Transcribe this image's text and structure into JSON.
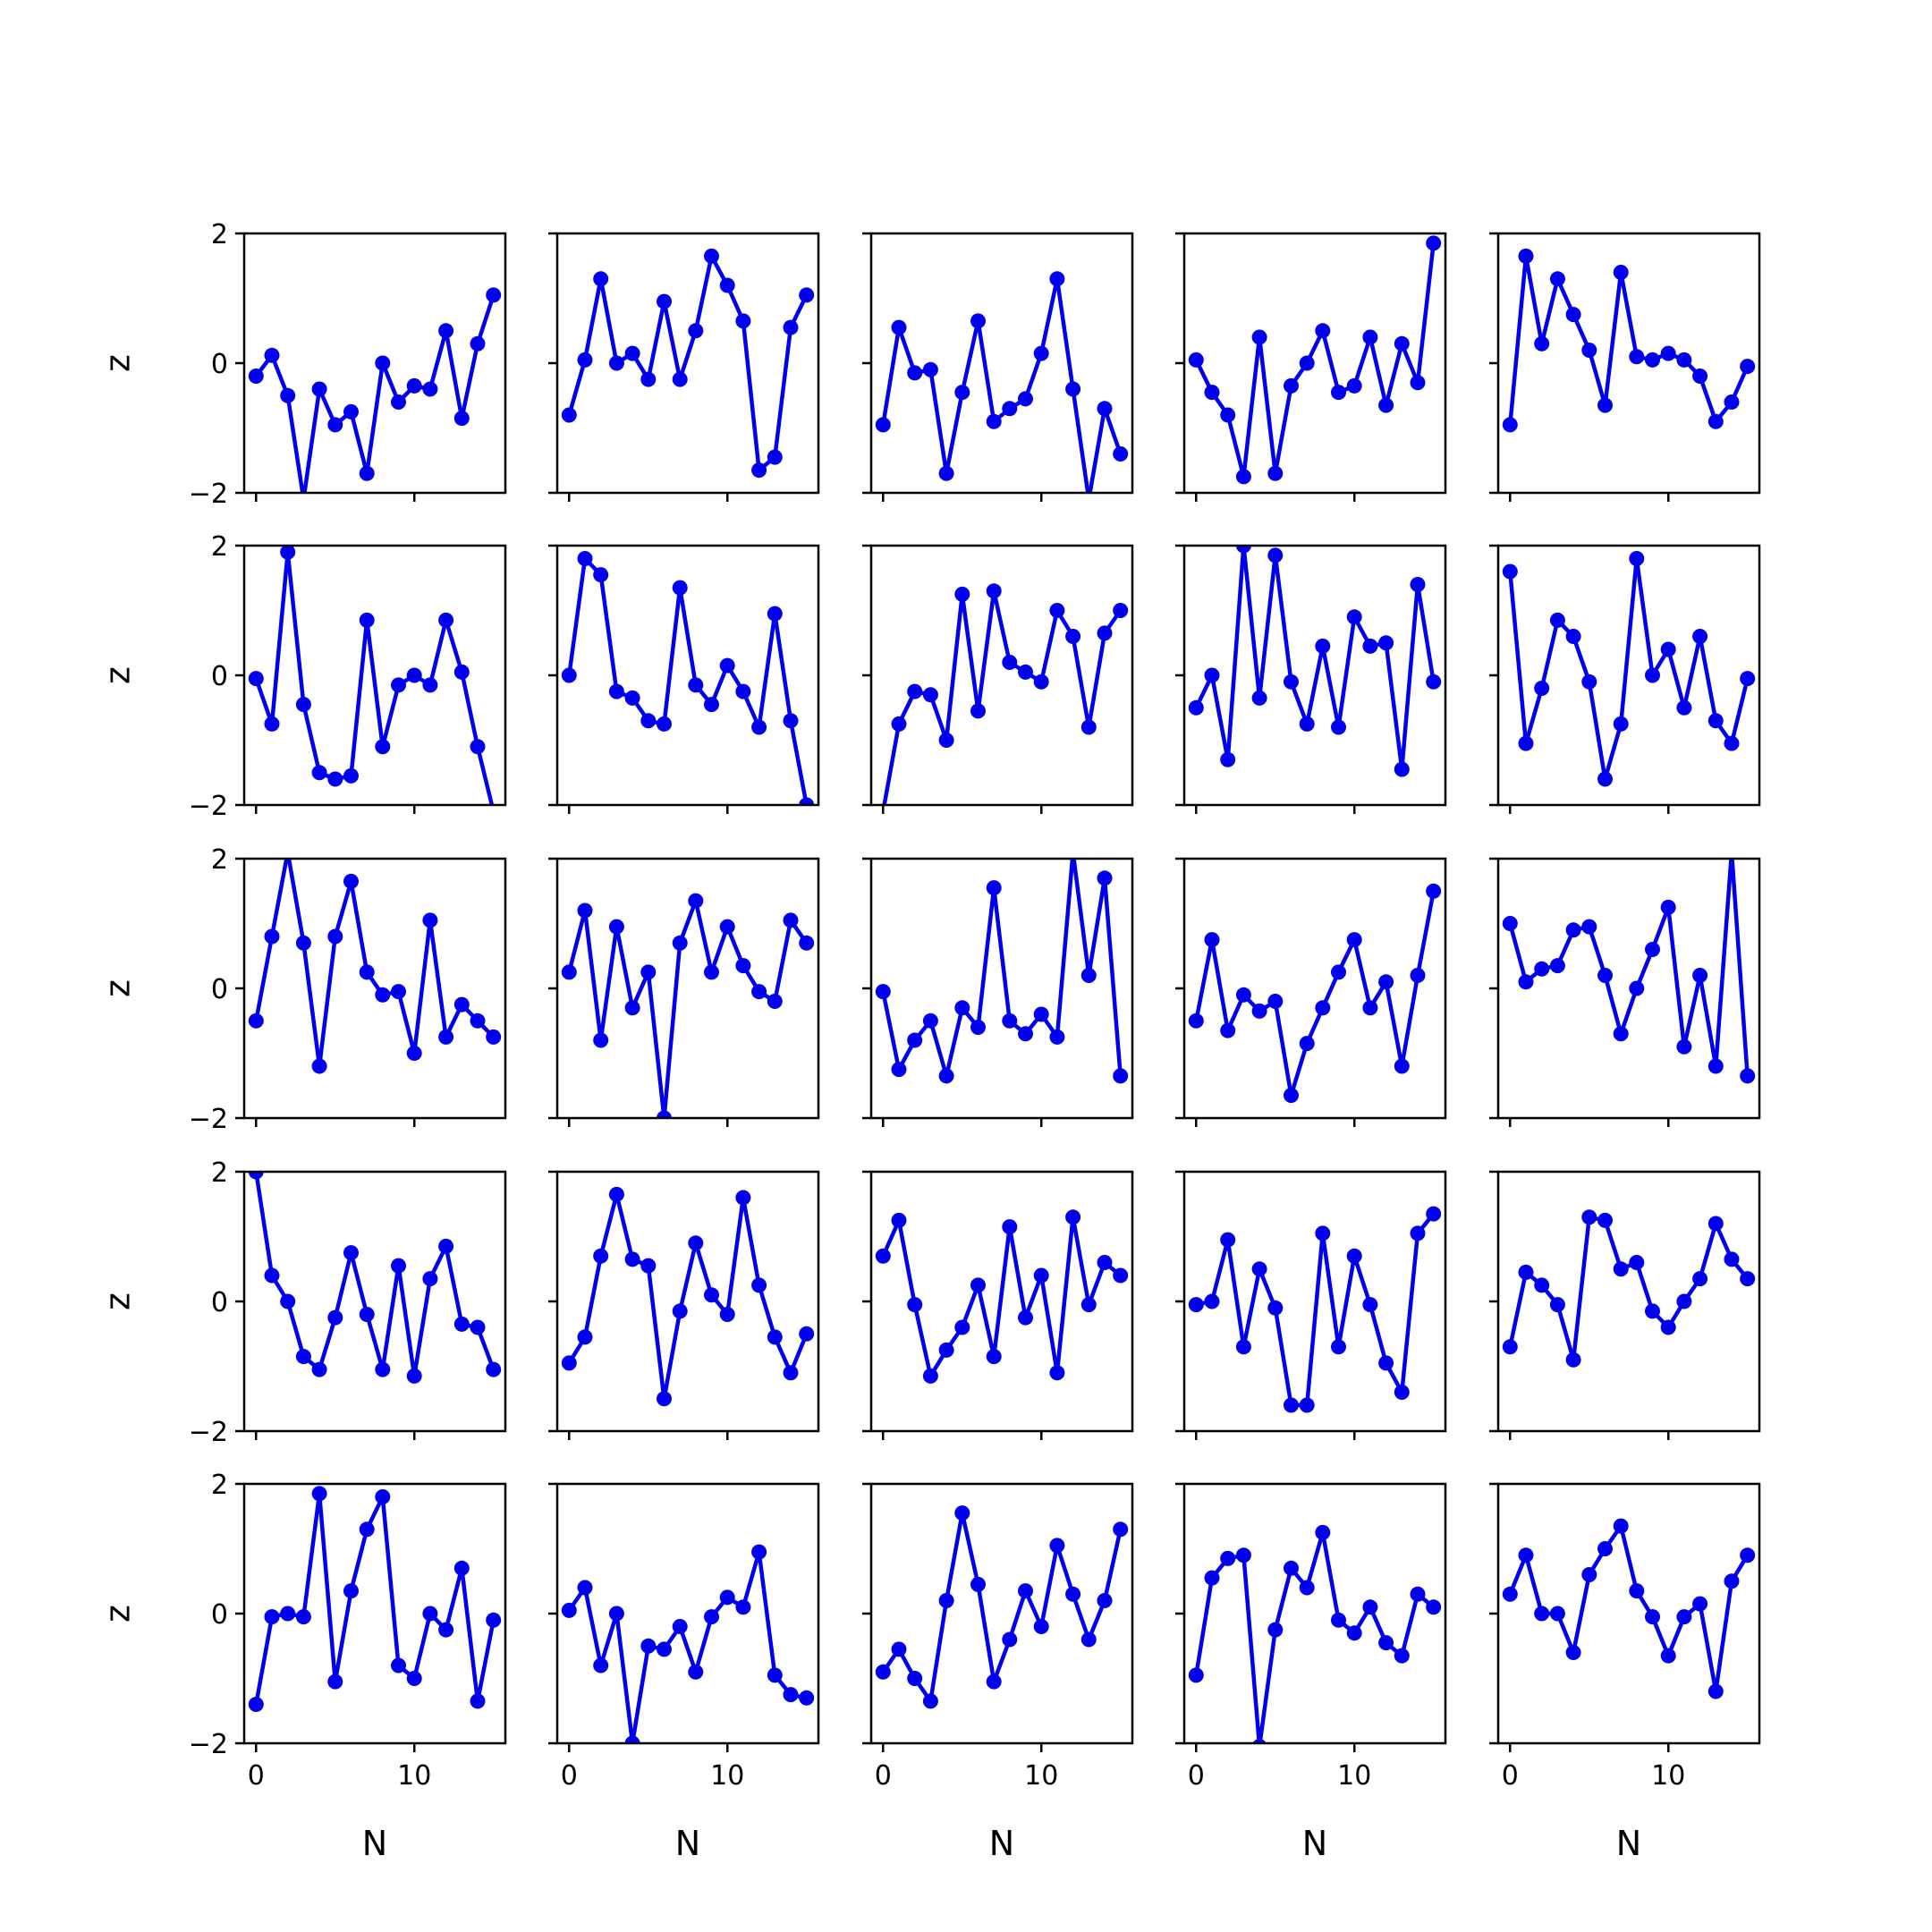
{
  "figure": {
    "line_color": "#0000ee"
  },
  "axes": {
    "ylabel": "z",
    "xlabel": "N",
    "xlim": [
      -0.75,
      15.75
    ],
    "ylim": [
      -2,
      2
    ],
    "xticks": [
      0,
      10
    ],
    "yticks": [
      -2,
      0,
      2
    ],
    "xtick_labels": [
      "0",
      "10"
    ],
    "ytick_labels": [
      "−2",
      "0",
      "2"
    ]
  },
  "chart_data": [
    {
      "type": "line",
      "panel": "r1c1",
      "x": [
        0,
        1,
        2,
        3,
        4,
        5,
        6,
        7,
        8,
        9,
        10,
        11,
        12,
        13,
        14,
        15
      ],
      "values": [
        -0.2,
        0.12,
        -0.5,
        -2.1,
        -0.4,
        -0.95,
        -0.75,
        -1.7,
        0.0,
        -0.6,
        -0.35,
        -0.4,
        0.5,
        -0.85,
        0.3,
        1.05
      ]
    },
    {
      "type": "line",
      "panel": "r1c2",
      "x": [
        0,
        1,
        2,
        3,
        4,
        5,
        6,
        7,
        8,
        9,
        10,
        11,
        12,
        13,
        14,
        15
      ],
      "values": [
        -0.8,
        0.05,
        1.3,
        0.0,
        0.15,
        -0.25,
        0.95,
        -0.25,
        0.5,
        1.65,
        1.2,
        0.65,
        -1.65,
        -1.45,
        0.55,
        1.05
      ]
    },
    {
      "type": "line",
      "panel": "r1c3",
      "x": [
        0,
        1,
        2,
        3,
        4,
        5,
        6,
        7,
        8,
        9,
        10,
        11,
        12,
        13,
        14,
        15
      ],
      "values": [
        -0.95,
        0.55,
        -0.15,
        -0.1,
        -1.7,
        -0.45,
        0.65,
        -0.9,
        -0.7,
        -0.55,
        0.15,
        1.3,
        -0.4,
        -2.1,
        -0.7,
        -1.4
      ]
    },
    {
      "type": "line",
      "panel": "r1c4",
      "x": [
        0,
        1,
        2,
        3,
        4,
        5,
        6,
        7,
        8,
        9,
        10,
        11,
        12,
        13,
        14,
        15
      ],
      "values": [
        0.05,
        -0.45,
        -0.8,
        -1.75,
        0.4,
        -1.7,
        -0.35,
        0.0,
        0.5,
        -0.45,
        -0.35,
        0.4,
        -0.65,
        0.3,
        -0.3,
        1.85
      ]
    },
    {
      "type": "line",
      "panel": "r1c5",
      "x": [
        0,
        1,
        2,
        3,
        4,
        5,
        6,
        7,
        8,
        9,
        10,
        11,
        12,
        13,
        14,
        15
      ],
      "values": [
        -0.95,
        1.65,
        0.3,
        1.3,
        0.75,
        0.2,
        -0.65,
        1.4,
        0.1,
        0.05,
        0.15,
        0.05,
        -0.2,
        -0.9,
        -0.6,
        -0.05
      ]
    },
    {
      "type": "line",
      "panel": "r2c1",
      "x": [
        0,
        1,
        2,
        3,
        4,
        5,
        6,
        7,
        8,
        9,
        10,
        11,
        12,
        13,
        14,
        15
      ],
      "values": [
        -0.05,
        -0.75,
        1.9,
        -0.45,
        -1.5,
        -1.6,
        -1.55,
        0.85,
        -1.1,
        -0.15,
        0.0,
        -0.15,
        0.85,
        0.05,
        -1.1,
        -2.1
      ]
    },
    {
      "type": "line",
      "panel": "r2c2",
      "x": [
        0,
        1,
        2,
        3,
        4,
        5,
        6,
        7,
        8,
        9,
        10,
        11,
        12,
        13,
        14,
        15
      ],
      "values": [
        0.0,
        1.8,
        1.55,
        -0.25,
        -0.35,
        -0.7,
        -0.75,
        1.35,
        -0.15,
        -0.45,
        0.15,
        -0.25,
        -0.8,
        0.95,
        -0.7,
        -2.0
      ]
    },
    {
      "type": "line",
      "panel": "r2c3",
      "x": [
        0,
        1,
        2,
        3,
        4,
        5,
        6,
        7,
        8,
        9,
        10,
        11,
        12,
        13,
        14,
        15
      ],
      "values": [
        -2.1,
        -0.75,
        -0.25,
        -0.3,
        -1.0,
        1.25,
        -0.55,
        1.3,
        0.2,
        0.05,
        -0.1,
        1.0,
        0.6,
        -0.8,
        0.65,
        1.0
      ]
    },
    {
      "type": "line",
      "panel": "r2c4",
      "x": [
        0,
        1,
        2,
        3,
        4,
        5,
        6,
        7,
        8,
        9,
        10,
        11,
        12,
        13,
        14,
        15
      ],
      "values": [
        -0.5,
        0.0,
        -1.3,
        2.0,
        -0.35,
        1.85,
        -0.1,
        -0.75,
        0.45,
        -0.8,
        0.9,
        0.45,
        0.5,
        -1.45,
        1.4,
        -0.1
      ]
    },
    {
      "type": "line",
      "panel": "r2c5",
      "x": [
        0,
        1,
        2,
        3,
        4,
        5,
        6,
        7,
        8,
        9,
        10,
        11,
        12,
        13,
        14,
        15
      ],
      "values": [
        1.6,
        -1.05,
        -0.2,
        0.85,
        0.6,
        -0.1,
        -1.6,
        -0.75,
        1.8,
        0.0,
        0.4,
        -0.5,
        0.6,
        -0.7,
        -1.05,
        -0.05
      ]
    },
    {
      "type": "line",
      "panel": "r3c1",
      "x": [
        0,
        1,
        2,
        3,
        4,
        5,
        6,
        7,
        8,
        9,
        10,
        11,
        12,
        13,
        14,
        15
      ],
      "values": [
        -0.5,
        0.8,
        2.1,
        0.7,
        -1.2,
        0.8,
        1.65,
        0.25,
        -0.1,
        -0.05,
        -1.0,
        1.05,
        -0.75,
        -0.25,
        -0.5,
        -0.75
      ]
    },
    {
      "type": "line",
      "panel": "r3c2",
      "x": [
        0,
        1,
        2,
        3,
        4,
        5,
        6,
        7,
        8,
        9,
        10,
        11,
        12,
        13,
        14,
        15
      ],
      "values": [
        0.25,
        1.2,
        -0.8,
        0.95,
        -0.3,
        0.25,
        -2.0,
        0.7,
        1.35,
        0.25,
        0.95,
        0.35,
        -0.05,
        -0.2,
        1.05,
        0.7
      ]
    },
    {
      "type": "line",
      "panel": "r3c3",
      "x": [
        0,
        1,
        2,
        3,
        4,
        5,
        6,
        7,
        8,
        9,
        10,
        11,
        12,
        13,
        14,
        15
      ],
      "values": [
        -0.05,
        -1.25,
        -0.8,
        -0.5,
        -1.35,
        -0.3,
        -0.6,
        1.55,
        -0.5,
        -0.7,
        -0.4,
        -0.75,
        2.1,
        0.2,
        1.7,
        -1.35
      ]
    },
    {
      "type": "line",
      "panel": "r3c4",
      "x": [
        0,
        1,
        2,
        3,
        4,
        5,
        6,
        7,
        8,
        9,
        10,
        11,
        12,
        13,
        14,
        15
      ],
      "values": [
        -0.5,
        0.75,
        -0.65,
        -0.1,
        -0.35,
        -0.2,
        -1.65,
        -0.85,
        -0.3,
        0.25,
        0.75,
        -0.3,
        0.1,
        -1.2,
        0.2,
        1.5
      ]
    },
    {
      "type": "line",
      "panel": "r3c5",
      "x": [
        0,
        1,
        2,
        3,
        4,
        5,
        6,
        7,
        8,
        9,
        10,
        11,
        12,
        13,
        14,
        15
      ],
      "values": [
        1.0,
        0.1,
        0.3,
        0.35,
        0.9,
        0.95,
        0.2,
        -0.7,
        0.0,
        0.6,
        1.25,
        -0.9,
        0.2,
        -1.2,
        2.1,
        -1.35
      ]
    },
    {
      "type": "line",
      "panel": "r4c1",
      "x": [
        0,
        1,
        2,
        3,
        4,
        5,
        6,
        7,
        8,
        9,
        10,
        11,
        12,
        13,
        14,
        15
      ],
      "values": [
        2.0,
        0.4,
        0.0,
        -0.85,
        -1.05,
        -0.25,
        0.75,
        -0.2,
        -1.05,
        0.55,
        -1.15,
        0.35,
        0.85,
        -0.35,
        -0.4,
        -1.05
      ]
    },
    {
      "type": "line",
      "panel": "r4c2",
      "x": [
        0,
        1,
        2,
        3,
        4,
        5,
        6,
        7,
        8,
        9,
        10,
        11,
        12,
        13,
        14,
        15
      ],
      "values": [
        -0.95,
        -0.55,
        0.7,
        1.65,
        0.65,
        0.55,
        -1.5,
        -0.15,
        0.9,
        0.1,
        -0.2,
        1.6,
        0.25,
        -0.55,
        -1.1,
        -0.5
      ]
    },
    {
      "type": "line",
      "panel": "r4c3",
      "x": [
        0,
        1,
        2,
        3,
        4,
        5,
        6,
        7,
        8,
        9,
        10,
        11,
        12,
        13,
        14,
        15
      ],
      "values": [
        0.7,
        1.25,
        -0.05,
        -1.15,
        -0.75,
        -0.4,
        0.25,
        -0.85,
        1.15,
        -0.25,
        0.4,
        -1.1,
        1.3,
        -0.05,
        0.6,
        0.4
      ]
    },
    {
      "type": "line",
      "panel": "r4c4",
      "x": [
        0,
        1,
        2,
        3,
        4,
        5,
        6,
        7,
        8,
        9,
        10,
        11,
        12,
        13,
        14,
        15
      ],
      "values": [
        -0.05,
        0.0,
        0.95,
        -0.7,
        0.5,
        -0.1,
        -1.6,
        -1.6,
        1.05,
        -0.7,
        0.7,
        -0.05,
        -0.95,
        -1.4,
        1.05,
        1.35
      ]
    },
    {
      "type": "line",
      "panel": "r4c5",
      "x": [
        0,
        1,
        2,
        3,
        4,
        5,
        6,
        7,
        8,
        9,
        10,
        11,
        12,
        13,
        14,
        15
      ],
      "values": [
        -0.7,
        0.45,
        0.25,
        -0.05,
        -0.9,
        1.3,
        1.25,
        0.5,
        0.6,
        -0.15,
        -0.4,
        0.0,
        0.35,
        1.2,
        0.65,
        0.35
      ]
    },
    {
      "type": "line",
      "panel": "r5c1",
      "x": [
        0,
        1,
        2,
        3,
        4,
        5,
        6,
        7,
        8,
        9,
        10,
        11,
        12,
        13,
        14,
        15
      ],
      "values": [
        -1.4,
        -0.05,
        0.0,
        -0.05,
        1.85,
        -1.05,
        0.35,
        1.3,
        1.8,
        -0.8,
        -1.0,
        0.0,
        -0.25,
        0.7,
        -1.35,
        -0.1
      ]
    },
    {
      "type": "line",
      "panel": "r5c2",
      "x": [
        0,
        1,
        2,
        3,
        4,
        5,
        6,
        7,
        8,
        9,
        10,
        11,
        12,
        13,
        14,
        15
      ],
      "values": [
        0.05,
        0.4,
        -0.8,
        0.0,
        -2.0,
        -0.5,
        -0.55,
        -0.2,
        -0.9,
        -0.05,
        0.25,
        0.1,
        0.95,
        -0.95,
        -1.25,
        -1.3
      ]
    },
    {
      "type": "line",
      "panel": "r5c3",
      "x": [
        0,
        1,
        2,
        3,
        4,
        5,
        6,
        7,
        8,
        9,
        10,
        11,
        12,
        13,
        14,
        15
      ],
      "values": [
        -0.9,
        -0.55,
        -1.0,
        -1.35,
        0.2,
        1.55,
        0.45,
        -1.05,
        -0.4,
        0.35,
        -0.2,
        1.05,
        0.3,
        -0.4,
        0.2,
        1.3
      ]
    },
    {
      "type": "line",
      "panel": "r5c4",
      "x": [
        0,
        1,
        2,
        3,
        4,
        5,
        6,
        7,
        8,
        9,
        10,
        11,
        12,
        13,
        14,
        15
      ],
      "values": [
        -0.95,
        0.55,
        0.85,
        0.9,
        -2.05,
        -0.25,
        0.7,
        0.4,
        1.25,
        -0.1,
        -0.3,
        0.1,
        -0.45,
        -0.65,
        0.3,
        0.1
      ]
    },
    {
      "type": "line",
      "panel": "r5c5",
      "x": [
        0,
        1,
        2,
        3,
        4,
        5,
        6,
        7,
        8,
        9,
        10,
        11,
        12,
        13,
        14,
        15
      ],
      "values": [
        0.3,
        0.9,
        0.0,
        0.0,
        -0.6,
        0.6,
        1.0,
        1.35,
        0.35,
        -0.05,
        -0.65,
        -0.05,
        0.15,
        -1.2,
        0.5,
        0.9
      ]
    }
  ]
}
